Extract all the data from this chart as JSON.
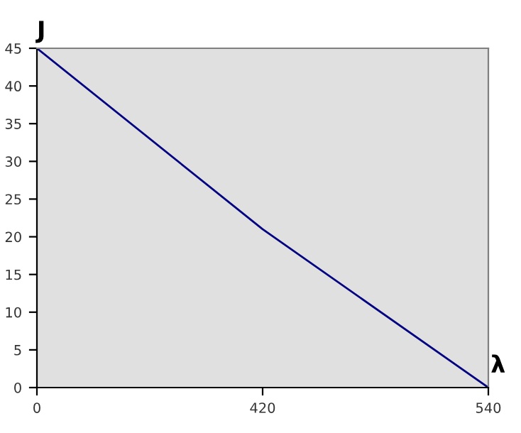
{
  "chart_data": {
    "type": "line",
    "xlabel": "λ",
    "ylabel": "J",
    "categories": [
      "0",
      "420",
      "540"
    ],
    "series": [
      {
        "color": "#000080",
        "values": [
          45,
          21,
          0
        ]
      }
    ],
    "ylim": [
      0,
      45
    ],
    "yticks": [
      0,
      5,
      10,
      15,
      20,
      25,
      30,
      35,
      40,
      45
    ],
    "grid": false,
    "marker": "none",
    "line_style": "solid"
  }
}
